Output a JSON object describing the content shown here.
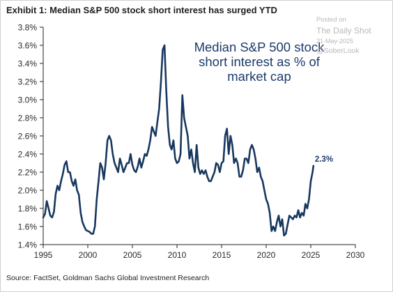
{
  "title": "Exhibit 1: Median S&P 500 stock short interest has surged YTD",
  "source": "Source: FactSet, Goldman Sachs Global Investment Research",
  "watermark": {
    "line1": "Posted on",
    "line2": "The Daily Shot",
    "line3": "21-May-2025",
    "line4": "@SoberLook"
  },
  "colors": {
    "series": "#17375e",
    "annotation": "#1b3b6b",
    "axis": "#222222"
  },
  "chart_data": {
    "type": "line",
    "title": "Exhibit 1: Median S&P 500 stock short interest has surged YTD",
    "xlabel": "",
    "ylabel": "",
    "xlim": [
      1995,
      2030
    ],
    "ylim": [
      1.4,
      3.8
    ],
    "x_ticks": [
      "1995",
      "2000",
      "2005",
      "2010",
      "2015",
      "2020",
      "2025",
      "2030"
    ],
    "y_ticks": [
      "1.4%",
      "1.6%",
      "1.8%",
      "2.0%",
      "2.2%",
      "2.4%",
      "2.6%",
      "2.8%",
      "3.0%",
      "3.2%",
      "3.4%",
      "3.6%",
      "3.8%"
    ],
    "grid": false,
    "legend": "none",
    "annotation": [
      "Median S&P 500 stock",
      "short interest as % of",
      "market cap"
    ],
    "data_label": {
      "text": "2.3%",
      "x": 2025.3,
      "y": 2.27
    },
    "series": [
      {
        "x": [
          1995.0,
          1995.2,
          1995.4,
          1995.6,
          1995.8,
          1996.0,
          1996.2,
          1996.4,
          1996.6,
          1996.8,
          1997.0,
          1997.2,
          1997.4,
          1997.6,
          1997.8,
          1998.0,
          1998.2,
          1998.4,
          1998.6,
          1998.8,
          1999.0,
          1999.2,
          1999.4,
          1999.6,
          1999.8,
          2000.0,
          2000.2,
          2000.4,
          2000.6,
          2000.8,
          2001.0,
          2001.2,
          2001.4,
          2001.6,
          2001.8,
          2002.0,
          2002.2,
          2002.4,
          2002.6,
          2002.8,
          2003.0,
          2003.2,
          2003.4,
          2003.6,
          2003.8,
          2004.0,
          2004.2,
          2004.4,
          2004.6,
          2004.8,
          2005.0,
          2005.2,
          2005.4,
          2005.6,
          2005.8,
          2006.0,
          2006.2,
          2006.4,
          2006.6,
          2006.8,
          2007.0,
          2007.2,
          2007.4,
          2007.6,
          2007.8,
          2008.0,
          2008.2,
          2008.4,
          2008.6,
          2008.8,
          2009.0,
          2009.2,
          2009.4,
          2009.6,
          2009.8,
          2010.0,
          2010.2,
          2010.4,
          2010.6,
          2010.8,
          2011.0,
          2011.2,
          2011.4,
          2011.6,
          2011.8,
          2012.0,
          2012.2,
          2012.4,
          2012.6,
          2012.8,
          2013.0,
          2013.2,
          2013.4,
          2013.6,
          2013.8,
          2014.0,
          2014.2,
          2014.4,
          2014.6,
          2014.8,
          2015.0,
          2015.2,
          2015.4,
          2015.6,
          2015.8,
          2016.0,
          2016.2,
          2016.4,
          2016.6,
          2016.8,
          2017.0,
          2017.2,
          2017.4,
          2017.6,
          2017.8,
          2018.0,
          2018.2,
          2018.4,
          2018.6,
          2018.8,
          2019.0,
          2019.2,
          2019.4,
          2019.6,
          2019.8,
          2020.0,
          2020.2,
          2020.4,
          2020.6,
          2020.8,
          2021.0,
          2021.2,
          2021.4,
          2021.6,
          2021.8,
          2022.0,
          2022.2,
          2022.4,
          2022.6,
          2022.8,
          2023.0,
          2023.2,
          2023.4,
          2023.6,
          2023.8,
          2024.0,
          2024.2,
          2024.4,
          2024.6,
          2024.8,
          2025.0,
          2025.2,
          2025.3
        ],
        "y": [
          1.7,
          1.74,
          1.88,
          1.8,
          1.72,
          1.7,
          1.76,
          1.96,
          2.05,
          2.0,
          2.1,
          2.18,
          2.28,
          2.32,
          2.2,
          2.2,
          2.1,
          2.05,
          2.12,
          2.0,
          1.95,
          1.75,
          1.65,
          1.6,
          1.56,
          1.55,
          1.54,
          1.52,
          1.52,
          1.6,
          1.9,
          2.1,
          2.3,
          2.25,
          2.12,
          2.3,
          2.55,
          2.6,
          2.55,
          2.4,
          2.3,
          2.25,
          2.2,
          2.35,
          2.28,
          2.2,
          2.25,
          2.3,
          2.3,
          2.4,
          2.28,
          2.22,
          2.2,
          2.26,
          2.35,
          2.25,
          2.32,
          2.4,
          2.38,
          2.45,
          2.55,
          2.7,
          2.65,
          2.6,
          2.75,
          2.9,
          3.2,
          3.55,
          3.6,
          3.1,
          2.7,
          2.5,
          2.45,
          2.55,
          2.35,
          2.3,
          2.32,
          2.4,
          3.05,
          2.8,
          2.7,
          2.6,
          2.35,
          2.45,
          2.3,
          2.2,
          2.5,
          2.25,
          2.18,
          2.22,
          2.18,
          2.22,
          2.15,
          2.1,
          2.1,
          2.15,
          2.2,
          2.3,
          2.28,
          2.2,
          2.3,
          2.32,
          2.6,
          2.68,
          2.4,
          2.6,
          2.5,
          2.3,
          2.35,
          2.3,
          2.15,
          2.15,
          2.22,
          2.35,
          2.35,
          2.3,
          2.45,
          2.5,
          2.45,
          2.35,
          2.2,
          2.25,
          2.15,
          2.1,
          2.0,
          1.9,
          1.85,
          1.75,
          1.55,
          1.6,
          1.55,
          1.65,
          1.72,
          1.6,
          1.68,
          1.5,
          1.52,
          1.62,
          1.72,
          1.7,
          1.68,
          1.72,
          1.7,
          1.78,
          1.7,
          1.75,
          1.72,
          1.85,
          1.8,
          1.9,
          2.1,
          2.2,
          2.27
        ]
      }
    ]
  }
}
